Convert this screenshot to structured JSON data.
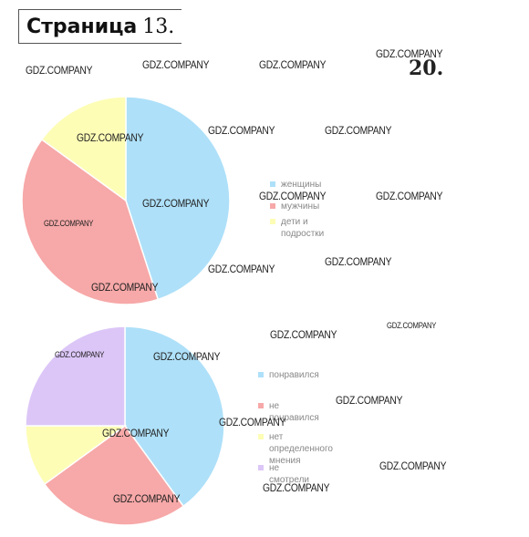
{
  "header": {
    "word": "Страница",
    "number": "13."
  },
  "task_number": "20.",
  "watermark_text": "GDZ.COMPANY",
  "colors": {
    "blue": "#aee0f9",
    "red": "#f7a8a8",
    "yellow": "#fdfdb6",
    "purple": "#dcc6f7"
  },
  "chart_data": [
    {
      "type": "pie",
      "title": "",
      "slices": [
        {
          "label": "женщины",
          "value": 45,
          "color": "#aee0f9"
        },
        {
          "label": "мужчины",
          "value": 40,
          "color": "#f7a8a8"
        },
        {
          "label": "дети и подростки",
          "value": 15,
          "color": "#fdfdb6"
        }
      ],
      "legend_placement": "right"
    },
    {
      "type": "pie",
      "title": "",
      "slices": [
        {
          "label": "понравился",
          "value": 40,
          "color": "#aee0f9"
        },
        {
          "label": "не понравился",
          "value": 25,
          "color": "#f7a8a8"
        },
        {
          "label": "нет определенного\nмнения",
          "value": 10,
          "color": "#fdfdb6"
        },
        {
          "label": "не смотрели",
          "value": 25,
          "color": "#dcc6f7"
        }
      ],
      "legend_placement": "right"
    }
  ]
}
